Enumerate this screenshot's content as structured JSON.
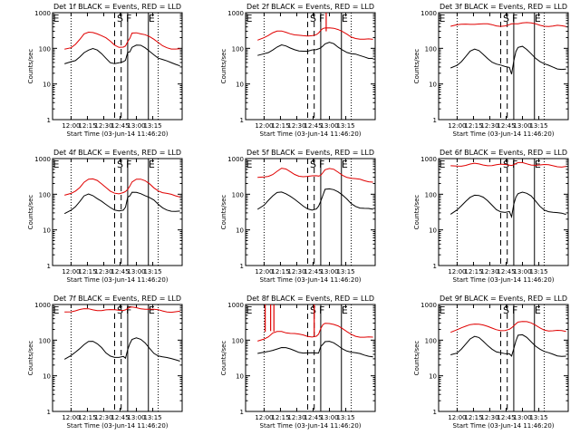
{
  "figure": {
    "xlabel": "Start Time (03-Jun-14 11:46:20)",
    "ylabel": "Counts/sec",
    "x_ticks": [
      "12:00",
      "12:15",
      "12:30",
      "12:45",
      "13:00",
      "13:15"
    ],
    "y_ticks": [
      "1",
      "10",
      "100",
      "1000"
    ],
    "markers": [
      "E",
      "S",
      "F",
      "E"
    ],
    "colors": {
      "events": "#000000",
      "lld": "#e00000",
      "axis": "#000000"
    }
  },
  "chart_data": [
    {
      "type": "line",
      "title": "Det 1f BLACK = Events, RED = LLD",
      "ylog": true,
      "ylim": [
        1,
        1000
      ],
      "x_minutes": [
        -6,
        0,
        4,
        8,
        12,
        16,
        20,
        24,
        28,
        32,
        36,
        40,
        44,
        48,
        50,
        52,
        54,
        56,
        60,
        64,
        68,
        72,
        76,
        80,
        84,
        88,
        92,
        96,
        100
      ],
      "series": [
        {
          "name": "Events",
          "values": [
            35,
            40,
            45,
            60,
            80,
            90,
            95,
            85,
            70,
            55,
            42,
            38,
            38,
            40,
            45,
            80,
            85,
            110,
            120,
            115,
            100,
            85,
            70,
            55,
            48,
            42,
            38,
            36,
            34
          ]
        },
        {
          "name": "LLD",
          "values": [
            100,
            110,
            130,
            170,
            240,
            280,
            290,
            270,
            230,
            190,
            150,
            120,
            110,
            115,
            120,
            150,
            180,
            260,
            280,
            270,
            250,
            210,
            170,
            140,
            120,
            110,
            100,
            95,
            92
          ]
        }
      ],
      "spikes": []
    },
    {
      "type": "line",
      "title": "Det 2f BLACK = Events, RED = LLD",
      "ylog": true,
      "ylim": [
        1,
        1000
      ],
      "x_minutes": [
        -6,
        0,
        4,
        8,
        12,
        16,
        20,
        24,
        28,
        32,
        36,
        40,
        44,
        48,
        50,
        52,
        54,
        56,
        60,
        64,
        68,
        72,
        76,
        80,
        84,
        88,
        92,
        96,
        100
      ],
      "series": [
        {
          "name": "Events",
          "values": [
            60,
            70,
            80,
            95,
            110,
            120,
            110,
            100,
            95,
            90,
            85,
            80,
            85,
            90,
            100,
            110,
            120,
            130,
            140,
            130,
            110,
            95,
            80,
            70,
            65,
            60,
            58,
            55,
            55
          ]
        },
        {
          "name": "LLD",
          "values": [
            180,
            200,
            220,
            260,
            300,
            320,
            300,
            260,
            230,
            220,
            220,
            230,
            240,
            250,
            260,
            300,
            350,
            380,
            400,
            380,
            330,
            280,
            240,
            210,
            200,
            190,
            180,
            175,
            170
          ]
        }
      ],
      "spikes": [
        {
          "x": 57,
          "from": 300,
          "to": 1000
        }
      ]
    },
    {
      "type": "line",
      "title": "Det 3f BLACK = Events, RED = LLD",
      "ylog": true,
      "ylim": [
        1,
        1000
      ],
      "x_minutes": [
        -6,
        0,
        4,
        8,
        12,
        16,
        20,
        24,
        28,
        32,
        36,
        40,
        44,
        48,
        50,
        52,
        54,
        56,
        60,
        64,
        68,
        72,
        76,
        80,
        84,
        88,
        92,
        96,
        100
      ],
      "series": [
        {
          "name": "Events",
          "values": [
            28,
            35,
            45,
            60,
            80,
            90,
            85,
            70,
            55,
            42,
            35,
            32,
            30,
            30,
            20,
            45,
            80,
            100,
            110,
            95,
            75,
            55,
            42,
            35,
            32,
            30,
            28,
            27,
            26
          ]
        },
        {
          "name": "LLD",
          "values": [
            420,
            440,
            450,
            470,
            490,
            500,
            490,
            470,
            460,
            450,
            440,
            440,
            440,
            450,
            460,
            470,
            500,
            520,
            540,
            520,
            490,
            470,
            450,
            440,
            430,
            420,
            420,
            410,
            410
          ]
        }
      ],
      "spikes": []
    },
    {
      "type": "line",
      "title": "Det 4f BLACK = Events, RED = LLD",
      "ylog": true,
      "ylim": [
        1,
        1000
      ],
      "x_minutes": [
        -6,
        0,
        4,
        8,
        12,
        16,
        20,
        24,
        28,
        32,
        36,
        40,
        44,
        48,
        50,
        52,
        54,
        56,
        60,
        64,
        68,
        72,
        76,
        80,
        84,
        88,
        92,
        96,
        100
      ],
      "series": [
        {
          "name": "Events",
          "values": [
            30,
            38,
            45,
            60,
            85,
            100,
            95,
            80,
            65,
            50,
            40,
            35,
            35,
            38,
            45,
            80,
            85,
            110,
            115,
            110,
            95,
            80,
            65,
            50,
            42,
            38,
            35,
            33,
            32
          ]
        },
        {
          "name": "LLD",
          "values": [
            90,
            100,
            120,
            160,
            230,
            270,
            260,
            230,
            190,
            160,
            130,
            110,
            100,
            105,
            115,
            140,
            180,
            230,
            260,
            250,
            230,
            200,
            160,
            130,
            110,
            100,
            95,
            90,
            88
          ]
        }
      ],
      "spikes": []
    },
    {
      "type": "line",
      "title": "Det 5f BLACK = Events, RED = LLD",
      "ylog": true,
      "ylim": [
        1,
        1000
      ],
      "x_minutes": [
        -6,
        0,
        4,
        8,
        12,
        16,
        20,
        24,
        28,
        32,
        36,
        40,
        44,
        48,
        50,
        52,
        54,
        56,
        60,
        64,
        68,
        72,
        76,
        80,
        84,
        88,
        92,
        96,
        100
      ],
      "series": [
        {
          "name": "Events",
          "values": [
            40,
            50,
            65,
            85,
            110,
            120,
            110,
            90,
            70,
            55,
            45,
            40,
            38,
            40,
            45,
            60,
            90,
            140,
            150,
            140,
            115,
            90,
            70,
            55,
            48,
            43,
            40,
            38,
            36
          ]
        },
        {
          "name": "LLD",
          "values": [
            280,
            300,
            330,
            380,
            450,
            520,
            480,
            420,
            370,
            340,
            320,
            310,
            310,
            320,
            330,
            360,
            420,
            480,
            500,
            480,
            420,
            360,
            310,
            280,
            260,
            250,
            240,
            235,
            230
          ]
        }
      ],
      "spikes": []
    },
    {
      "type": "line",
      "title": "Det 6f BLACK = Events, RED = LLD",
      "ylog": true,
      "ylim": [
        1,
        1000
      ],
      "x_minutes": [
        -6,
        0,
        4,
        8,
        12,
        16,
        20,
        24,
        28,
        32,
        36,
        40,
        44,
        48,
        50,
        52,
        54,
        56,
        60,
        64,
        68,
        72,
        76,
        80,
        84,
        88,
        92,
        96,
        100
      ],
      "series": [
        {
          "name": "Events",
          "values": [
            28,
            35,
            45,
            62,
            85,
            100,
            95,
            80,
            62,
            48,
            38,
            34,
            32,
            32,
            22,
            50,
            85,
            110,
            120,
            105,
            85,
            62,
            46,
            38,
            34,
            31,
            29,
            28,
            27
          ]
        },
        {
          "name": "LLD",
          "values": [
            620,
            640,
            650,
            660,
            680,
            700,
            690,
            680,
            670,
            660,
            660,
            660,
            660,
            670,
            680,
            700,
            720,
            730,
            740,
            720,
            700,
            680,
            660,
            650,
            640,
            630,
            620,
            610,
            610
          ]
        }
      ],
      "spikes": []
    },
    {
      "type": "line",
      "title": "Det 7f BLACK = Events, RED = LLD",
      "ylog": true,
      "ylim": [
        1,
        1000
      ],
      "x_minutes": [
        -6,
        0,
        4,
        8,
        12,
        16,
        20,
        24,
        28,
        32,
        36,
        40,
        44,
        48,
        50,
        52,
        54,
        56,
        60,
        64,
        68,
        72,
        76,
        80,
        84,
        88,
        92,
        96,
        100
      ],
      "series": [
        {
          "name": "Events",
          "values": [
            28,
            35,
            45,
            60,
            80,
            95,
            90,
            75,
            60,
            45,
            38,
            34,
            32,
            33,
            30,
            55,
            85,
            110,
            115,
            100,
            80,
            60,
            45,
            38,
            34,
            31,
            29,
            28,
            27
          ]
        },
        {
          "name": "LLD",
          "values": [
            640,
            660,
            680,
            700,
            720,
            740,
            730,
            720,
            700,
            690,
            680,
            690,
            700,
            720,
            740,
            760,
            790,
            810,
            820,
            800,
            770,
            730,
            700,
            680,
            660,
            650,
            640,
            630,
            620
          ]
        }
      ],
      "spikes": []
    },
    {
      "type": "line",
      "title": "Det 8f BLACK = Events, RED = LLD",
      "ylog": true,
      "ylim": [
        1,
        1000
      ],
      "x_minutes": [
        -6,
        0,
        4,
        8,
        12,
        16,
        20,
        24,
        28,
        32,
        36,
        40,
        44,
        48,
        50,
        52,
        54,
        56,
        60,
        64,
        68,
        72,
        76,
        80,
        84,
        88,
        92,
        96,
        100
      ],
      "series": [
        {
          "name": "Events",
          "values": [
            40,
            45,
            50,
            55,
            58,
            60,
            58,
            55,
            52,
            48,
            45,
            43,
            42,
            42,
            44,
            70,
            80,
            90,
            88,
            80,
            70,
            60,
            52,
            46,
            42,
            40,
            38,
            37,
            36
          ]
        },
        {
          "name": "LLD",
          "values": [
            100,
            110,
            120,
            150,
            170,
            180,
            170,
            160,
            150,
            140,
            135,
            130,
            130,
            135,
            145,
            200,
            260,
            300,
            310,
            290,
            250,
            200,
            165,
            145,
            135,
            128,
            122,
            118,
            115
          ]
        }
      ],
      "spikes": [
        {
          "x": 1,
          "from": 170,
          "to": 1000
        },
        {
          "x": 6,
          "from": 180,
          "to": 1000
        },
        {
          "x": 9,
          "from": 175,
          "to": 1000
        },
        {
          "x": 46,
          "from": 135,
          "to": 1000
        }
      ]
    },
    {
      "type": "line",
      "title": "Det 9f BLACK = Events, RED = LLD",
      "ylog": true,
      "ylim": [
        1,
        1000
      ],
      "x_minutes": [
        -6,
        0,
        4,
        8,
        12,
        16,
        20,
        24,
        28,
        32,
        36,
        40,
        44,
        48,
        50,
        52,
        54,
        56,
        60,
        64,
        68,
        72,
        76,
        80,
        84,
        88,
        92,
        96,
        100
      ],
      "series": [
        {
          "name": "Events",
          "values": [
            38,
            45,
            60,
            80,
            105,
            120,
            115,
            95,
            75,
            58,
            46,
            42,
            40,
            42,
            38,
            60,
            95,
            130,
            135,
            120,
            95,
            72,
            56,
            46,
            42,
            40,
            38,
            37,
            36
          ]
        },
        {
          "name": "LLD",
          "values": [
            170,
            190,
            210,
            240,
            280,
            300,
            290,
            260,
            230,
            210,
            200,
            195,
            195,
            200,
            210,
            240,
            290,
            340,
            350,
            330,
            290,
            250,
            220,
            200,
            190,
            185,
            180,
            175,
            172
          ]
        }
      ],
      "spikes": []
    }
  ]
}
